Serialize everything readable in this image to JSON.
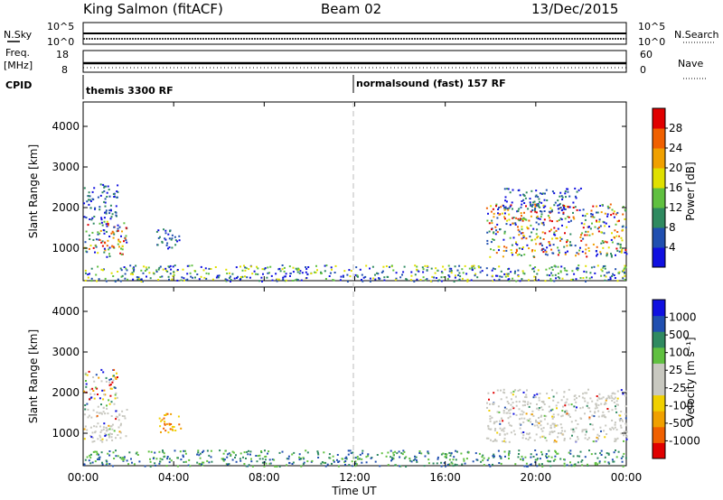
{
  "header": {
    "station": "King Salmon (fitACF)",
    "beam": "Beam 02",
    "date": "13/Dec/2015"
  },
  "top_panels": {
    "nsky_label": "N.Sky",
    "nsky_ticks": [
      "10^5",
      "10^0"
    ],
    "nsearch_label": "N.Search",
    "nsearch_ticks": [
      "10^5",
      "10^0"
    ],
    "freq_label": "Freq.",
    "freq_unit": "[MHz]",
    "freq_ticks": [
      "18",
      "8"
    ],
    "nave_label": "Nave",
    "nave_ticks": [
      "60",
      "0"
    ],
    "cpid_label": "CPID",
    "cpid_segments": [
      {
        "label": "themis 3300 RF",
        "start_hour": 0.0
      },
      {
        "label": "normalsound (fast) 157 RF",
        "start_hour": 12.0
      }
    ]
  },
  "x_axis": {
    "label": "Time UT",
    "tick_labels": [
      "00:00",
      "04:00",
      "08:00",
      "12:00",
      "16:00",
      "20:00",
      "00:00"
    ],
    "tick_hours": [
      0,
      4,
      8,
      12,
      16,
      20,
      24
    ]
  },
  "colors": {
    "power": [
      "#1010e0",
      "#204fb0",
      "#2f8a60",
      "#60c040",
      "#e0e000",
      "#f0a000",
      "#f06000",
      "#e00000"
    ],
    "velocity": [
      "#e00000",
      "#f06000",
      "#f0a000",
      "#f0d000",
      "#c8c8c0",
      "#c8c8c0",
      "#60c040",
      "#2f8a60",
      "#204fb0",
      "#1010e0"
    ],
    "dashed_line": "#bbbbbb"
  },
  "chart_data": [
    {
      "type": "heatmap",
      "ylabel": "Slant Range [km]",
      "ylim": [
        200,
        4600
      ],
      "y_ticks": [
        1000,
        2000,
        3000,
        4000
      ],
      "xlim_hours": [
        0,
        24
      ],
      "colorbar_label": "Power [dB]",
      "colorbar_ticks": [
        "4",
        "8",
        "12",
        "16",
        "20",
        "24",
        "28"
      ],
      "colorbar_range": [
        0,
        32
      ],
      "regions": [
        {
          "t0": 0.0,
          "t1": 1.9,
          "r0": 800,
          "r1": 1700,
          "level": "mixed-high"
        },
        {
          "t0": 0.0,
          "t1": 1.5,
          "r0": 1700,
          "r1": 2600,
          "level": "low"
        },
        {
          "t0": 3.2,
          "t1": 4.3,
          "r0": 1000,
          "r1": 1500,
          "level": "low"
        },
        {
          "t0": 0.0,
          "t1": 24.0,
          "r0": 200,
          "r1": 600,
          "level": "mixed"
        },
        {
          "t0": 17.8,
          "t1": 24.0,
          "r0": 800,
          "r1": 2100,
          "level": "mixed-high"
        },
        {
          "t0": 18.5,
          "t1": 22.0,
          "r0": 1900,
          "r1": 2500,
          "level": "low"
        }
      ]
    },
    {
      "type": "heatmap",
      "ylabel": "Slant Range [km]",
      "ylim": [
        200,
        4600
      ],
      "y_ticks": [
        1000,
        2000,
        3000,
        4000
      ],
      "xlim_hours": [
        0,
        24
      ],
      "colorbar_label": "Velocity [m s⁻¹]",
      "colorbar_ticks": [
        "1000",
        "500",
        "100",
        "25",
        "-25",
        "-100",
        "-500",
        "-1000"
      ],
      "regions": [
        {
          "t0": 0.0,
          "t1": 1.9,
          "r0": 800,
          "r1": 1700,
          "level": "groundscatter"
        },
        {
          "t0": 0.0,
          "t1": 1.5,
          "r0": 1700,
          "r1": 2600,
          "level": "mixed"
        },
        {
          "t0": 3.2,
          "t1": 4.3,
          "r0": 1000,
          "r1": 1500,
          "level": "negative"
        },
        {
          "t0": 0.0,
          "t1": 24.0,
          "r0": 200,
          "r1": 600,
          "level": "positive"
        },
        {
          "t0": 17.8,
          "t1": 24.0,
          "r0": 800,
          "r1": 2100,
          "level": "groundscatter"
        }
      ]
    }
  ]
}
